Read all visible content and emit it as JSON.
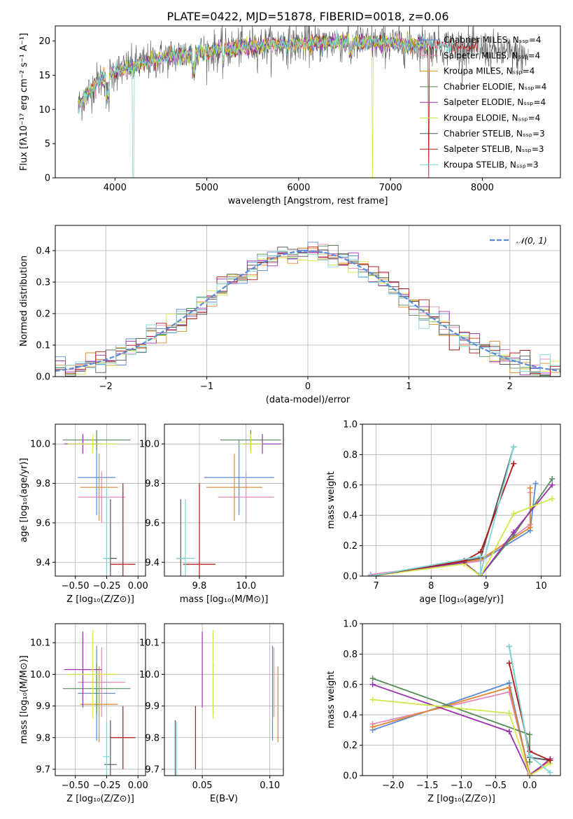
{
  "title": "PLATE=0422, MJD=51878, FIBERID=0018, z=0.06",
  "colors": {
    "chabrier_miles": "#5b8bd6",
    "salpeter_miles": "#e58ab8",
    "kroupa_miles": "#e0872e",
    "chabrier_elodie": "#558b55",
    "salpeter_elodie": "#9b2fb0",
    "kroupa_elodie": "#cfe84a",
    "chabrier_stelib": "#555555",
    "salpeter_stelib": "#b01818",
    "kroupa_stelib": "#7fd6d6",
    "normal": "#5b8bd6"
  },
  "chart_data": [
    {
      "id": "spectrum",
      "type": "line",
      "xlabel": "wavelength [Angstrom, rest frame]",
      "ylabel": "Flux [fλ10⁻¹⁷ erg cm⁻² s⁻¹ A⁻¹]",
      "xlim": [
        3350,
        8850
      ],
      "ylim": [
        0,
        22.2
      ],
      "xticks": [
        "4000",
        "5000",
        "6000",
        "7000",
        "8000"
      ],
      "yticks": [
        "0",
        "5",
        "10",
        "15",
        "20"
      ],
      "grid": false,
      "legend_position": "top-right",
      "continuum_x": [
        3600,
        3800,
        4000,
        4300,
        4600,
        5000,
        5500,
        6000,
        6500,
        7000,
        7500,
        8000,
        8500
      ],
      "continuum_y": [
        10.5,
        14,
        15.5,
        16.7,
        17.8,
        18.4,
        19.3,
        19.6,
        19.8,
        19.6,
        19.4,
        18.8,
        17.6
      ],
      "series": [
        {
          "name": "Chabrier MILES, Nₛₛₚ=4",
          "color_key": "chabrier_miles"
        },
        {
          "name": "Salpeter MILES, Nₛₛₚ=4",
          "color_key": "salpeter_miles"
        },
        {
          "name": "Kroupa MILES, Nₛₛₚ=4",
          "color_key": "kroupa_miles"
        },
        {
          "name": "Chabrier ELODIE, Nₛₛₚ=4",
          "color_key": "chabrier_elodie"
        },
        {
          "name": "Salpeter ELODIE, Nₛₛₚ=4",
          "color_key": "salpeter_elodie"
        },
        {
          "name": "Kroupa ELODIE, Nₛₛₚ=4",
          "color_key": "kroupa_elodie"
        },
        {
          "name": "Chabrier STELIB, Nₛₛₚ=3",
          "color_key": "chabrier_stelib"
        },
        {
          "name": "Salpeter STELIB, Nₛₛₚ=3",
          "color_key": "salpeter_stelib"
        },
        {
          "name": "Kroupa STELIB, Nₛₛₚ=3",
          "color_key": "kroupa_stelib"
        }
      ]
    },
    {
      "id": "residuals",
      "type": "step",
      "xlabel": "(data-model)/error",
      "ylabel": "Normed distribution",
      "xlim": [
        -2.5,
        2.5
      ],
      "ylim": [
        0,
        0.48
      ],
      "xticks": [
        -2,
        -1,
        0,
        1,
        2
      ],
      "xtick_labels": [
        "−2",
        "−1",
        "0",
        "1",
        "2"
      ],
      "yticks": [
        0.0,
        0.1,
        0.2,
        0.3,
        0.4
      ],
      "ytick_labels": [
        "0.0",
        "0.1",
        "0.2",
        "0.3",
        "0.4"
      ],
      "grid": true,
      "legend_position": "top-right",
      "reference_label": "𝒩(0, 1)",
      "reference_mean": 0,
      "reference_sigma": 1
    },
    {
      "id": "age_vs_Z",
      "type": "errorbar",
      "xlabel": "Z [log₁₀(Z/Z⊙)]",
      "ylabel": "age  [log₁₀(age/yr)]",
      "xlim": [
        -0.66,
        0.06
      ],
      "ylim": [
        9.33,
        10.1
      ],
      "xticks": [
        -0.5,
        -0.25,
        0.0
      ],
      "xtick_labels": [
        "−0.50",
        "−0.25",
        "0.00"
      ],
      "yticks": [
        9.4,
        9.6,
        9.8,
        10.0
      ],
      "ytick_labels": [
        "9.4",
        "9.6",
        "9.8",
        "10.0"
      ],
      "grid": true,
      "points": [
        {
          "key": "chabrier_miles",
          "x": -0.33,
          "xerr": 0.15,
          "y": 9.83,
          "yerr": 0.19
        },
        {
          "key": "salpeter_miles",
          "x": -0.29,
          "xerr": 0.19,
          "y": 9.73,
          "yerr": 0.13
        },
        {
          "key": "kroupa_miles",
          "x": -0.31,
          "xerr": 0.15,
          "y": 9.78,
          "yerr": 0.17
        },
        {
          "key": "chabrier_elodie",
          "x": -0.33,
          "xerr": 0.27,
          "y": 10.02,
          "yerr": 0.05
        },
        {
          "key": "salpeter_elodie",
          "x": -0.44,
          "xerr": 0.15,
          "y": 10.0,
          "yerr": 0.05
        },
        {
          "key": "kroupa_elodie",
          "x": -0.36,
          "xerr": 0.2,
          "y": 10.0,
          "yerr": 0.05
        },
        {
          "key": "chabrier_stelib",
          "x": -0.22,
          "xerr": 0.05,
          "y": 9.42,
          "yerr": 0.3
        },
        {
          "key": "salpeter_stelib",
          "x": -0.12,
          "xerr": 0.1,
          "y": 9.39,
          "yerr": 0.41
        },
        {
          "key": "kroupa_stelib",
          "x": -0.25,
          "xerr": 0.03,
          "y": 9.42,
          "yerr": 0.36
        }
      ]
    },
    {
      "id": "age_vs_mass",
      "type": "errorbar",
      "xlabel": "mass [log₁₀(M/M⊙)]",
      "ylabel": "",
      "xlim": [
        9.65,
        10.16
      ],
      "ylim": [
        9.33,
        10.1
      ],
      "xticks": [
        9.8,
        10.0
      ],
      "xtick_labels": [
        "9.8",
        "10.0"
      ],
      "yticks": [
        9.4,
        9.6,
        9.8,
        10.0
      ],
      "ytick_labels": [
        "9.4",
        "9.6",
        "9.8",
        "10.0"
      ],
      "grid": true,
      "points": [
        {
          "key": "chabrier_miles",
          "x": 9.97,
          "xerr": 0.15,
          "y": 9.83,
          "yerr": 0.19
        },
        {
          "key": "salpeter_miles",
          "x": 10.0,
          "xerr": 0.12,
          "y": 9.73,
          "yerr": 0.13
        },
        {
          "key": "kroupa_miles",
          "x": 9.95,
          "xerr": 0.12,
          "y": 9.78,
          "yerr": 0.17
        },
        {
          "key": "chabrier_elodie",
          "x": 10.02,
          "xerr": 0.13,
          "y": 10.02,
          "yerr": 0.05
        },
        {
          "key": "salpeter_elodie",
          "x": 10.07,
          "xerr": 0.08,
          "y": 10.0,
          "yerr": 0.05
        },
        {
          "key": "kroupa_elodie",
          "x": 10.02,
          "xerr": 0.05,
          "y": 10.0,
          "yerr": 0.05
        },
        {
          "key": "chabrier_stelib",
          "x": 9.72,
          "xerr": 0.02,
          "y": 9.42,
          "yerr": 0.3
        },
        {
          "key": "salpeter_stelib",
          "x": 9.8,
          "xerr": 0.07,
          "y": 9.39,
          "yerr": 0.41
        },
        {
          "key": "kroupa_stelib",
          "x": 9.74,
          "xerr": 0.04,
          "y": 9.42,
          "yerr": 0.3
        }
      ]
    },
    {
      "id": "weight_vs_age",
      "type": "line",
      "xlabel": "age  [log₁₀(age/yr)]",
      "ylabel": "mass weight",
      "xlim": [
        6.75,
        10.35
      ],
      "ylim": [
        0,
        1.0
      ],
      "xticks": [
        7,
        8,
        9,
        10
      ],
      "xtick_labels": [
        "7",
        "8",
        "9",
        "10"
      ],
      "yticks": [
        0.0,
        0.2,
        0.4,
        0.6,
        0.8,
        1.0
      ],
      "ytick_labels": [
        "0.0",
        "0.2",
        "0.4",
        "0.6",
        "0.8",
        "1.0"
      ],
      "grid": true,
      "series": [
        {
          "key": "chabrier_miles",
          "x": [
            6.9,
            8.9,
            9.8,
            9.9
          ],
          "y": [
            0.0,
            0.1,
            0.3,
            0.61
          ]
        },
        {
          "key": "salpeter_miles",
          "x": [
            6.9,
            8.9,
            9.8,
            9.8
          ],
          "y": [
            0.01,
            0.1,
            0.34,
            0.55
          ]
        },
        {
          "key": "kroupa_miles",
          "x": [
            6.9,
            8.9,
            9.8,
            9.8
          ],
          "y": [
            0.0,
            0.11,
            0.32,
            0.58
          ]
        },
        {
          "key": "chabrier_elodie",
          "x": [
            6.9,
            8.6,
            8.9,
            9.5,
            10.2
          ],
          "y": [
            0.0,
            0.09,
            0.0,
            0.27,
            0.64
          ]
        },
        {
          "key": "salpeter_elodie",
          "x": [
            6.9,
            8.6,
            8.9,
            9.5,
            10.2
          ],
          "y": [
            0.0,
            0.09,
            0.0,
            0.29,
            0.6
          ]
        },
        {
          "key": "kroupa_elodie",
          "x": [
            6.9,
            8.6,
            8.9,
            9.5,
            10.2
          ],
          "y": [
            0.0,
            0.08,
            0.0,
            0.41,
            0.51
          ]
        },
        {
          "key": "chabrier_stelib",
          "x": [
            6.9,
            8.6,
            8.9,
            9.5
          ],
          "y": [
            0.0,
            0.1,
            0.12,
            0.85
          ]
        },
        {
          "key": "salpeter_stelib",
          "x": [
            6.9,
            8.6,
            8.9,
            9.5
          ],
          "y": [
            0.0,
            0.1,
            0.16,
            0.74
          ]
        },
        {
          "key": "kroupa_stelib",
          "x": [
            6.9,
            8.9,
            8.9,
            9.5
          ],
          "y": [
            0.0,
            0.13,
            0.02,
            0.85
          ]
        }
      ]
    },
    {
      "id": "mass_vs_Z",
      "type": "errorbar",
      "xlabel": "Z [log₁₀(Z/Z⊙)]",
      "ylabel": "mass [log₁₀(M/M⊙)]",
      "xlim": [
        -0.66,
        0.06
      ],
      "ylim": [
        9.68,
        10.16
      ],
      "xticks": [
        -0.5,
        -0.25,
        0.0
      ],
      "xtick_labels": [
        "−0.50",
        "−0.25",
        "0.00"
      ],
      "yticks": [
        9.7,
        9.8,
        9.9,
        10.0,
        10.1
      ],
      "ytick_labels": [
        "9.7",
        "9.8",
        "9.9",
        "10.0",
        "10.1"
      ],
      "grid": true,
      "points": [
        {
          "key": "chabrier_miles",
          "x": -0.33,
          "xerr": 0.15,
          "y": 9.94,
          "yerr": 0.15
        },
        {
          "key": "salpeter_miles",
          "x": -0.29,
          "xerr": 0.19,
          "y": 9.975,
          "yerr": 0.11
        },
        {
          "key": "kroupa_miles",
          "x": -0.31,
          "xerr": 0.15,
          "y": 9.905,
          "yerr": 0.12
        },
        {
          "key": "chabrier_elodie",
          "x": -0.33,
          "xerr": 0.27,
          "y": 9.955,
          "yerr": 0.08
        },
        {
          "key": "salpeter_elodie",
          "x": -0.44,
          "xerr": 0.15,
          "y": 10.015,
          "yerr": 0.12
        },
        {
          "key": "kroupa_elodie",
          "x": -0.36,
          "xerr": 0.2,
          "y": 10.0,
          "yerr": 0.14
        },
        {
          "key": "chabrier_stelib",
          "x": -0.22,
          "xerr": 0.05,
          "y": 9.715,
          "yerr": 0.14
        },
        {
          "key": "salpeter_stelib",
          "x": -0.12,
          "xerr": 0.1,
          "y": 9.8,
          "yerr": 0.1
        },
        {
          "key": "kroupa_stelib",
          "x": -0.25,
          "xerr": 0.03,
          "y": 9.74,
          "yerr": 0.11
        }
      ]
    },
    {
      "id": "mass_vs_ebv",
      "type": "errorbar",
      "xlabel": "E(B-V)",
      "ylabel": "",
      "xlim": [
        0.022,
        0.11
      ],
      "ylim": [
        9.68,
        10.16
      ],
      "xticks": [
        0.05,
        0.1
      ],
      "xtick_labels": [
        "0.05",
        "0.10"
      ],
      "yticks": [
        9.7,
        9.8,
        9.9,
        10.0,
        10.1
      ],
      "ytick_labels": [
        "9.7",
        "9.8",
        "9.9",
        "10.0",
        "10.1"
      ],
      "grid": true,
      "points": [
        {
          "key": "chabrier_miles",
          "x": 0.102,
          "xerr": 0,
          "y": 9.94,
          "yerr": 0.15
        },
        {
          "key": "salpeter_miles",
          "x": 0.103,
          "xerr": 0,
          "y": 9.975,
          "yerr": 0.11
        },
        {
          "key": "kroupa_miles",
          "x": 0.106,
          "xerr": 0,
          "y": 9.905,
          "yerr": 0.12
        },
        {
          "key": "chabrier_elodie",
          "x": 0.058,
          "xerr": 0,
          "y": 9.955,
          "yerr": 0.08
        },
        {
          "key": "salpeter_elodie",
          "x": 0.05,
          "xerr": 0,
          "y": 10.015,
          "yerr": 0.12
        },
        {
          "key": "kroupa_elodie",
          "x": 0.058,
          "xerr": 0,
          "y": 10.0,
          "yerr": 0.14
        },
        {
          "key": "chabrier_stelib",
          "x": 0.03,
          "xerr": 0,
          "y": 9.715,
          "yerr": 0.14
        },
        {
          "key": "salpeter_stelib",
          "x": 0.045,
          "xerr": 0,
          "y": 9.8,
          "yerr": 0.1
        },
        {
          "key": "kroupa_stelib",
          "x": 0.031,
          "xerr": 0,
          "y": 9.74,
          "yerr": 0.11
        }
      ]
    },
    {
      "id": "weight_vs_Z",
      "type": "line",
      "xlabel": "Z [log₁₀(Z/Z⊙)]",
      "ylabel": "mass weight",
      "xlim": [
        -2.45,
        0.45
      ],
      "ylim": [
        0,
        1.0
      ],
      "xticks": [
        -2.0,
        -1.5,
        -1.0,
        -0.5,
        0.0
      ],
      "xtick_labels": [
        "−2.0",
        "−1.5",
        "−1.0",
        "−0.5",
        "0.0"
      ],
      "yticks": [
        0.0,
        0.2,
        0.4,
        0.6,
        0.8,
        1.0
      ],
      "ytick_labels": [
        "0.0",
        "0.2",
        "0.4",
        "0.6",
        "0.8",
        "1.0"
      ],
      "grid": true,
      "series": [
        {
          "key": "chabrier_miles",
          "x": [
            -2.3,
            -0.3,
            0.0,
            0.3
          ],
          "y": [
            0.3,
            0.61,
            0.0,
            0.1
          ]
        },
        {
          "key": "salpeter_miles",
          "x": [
            -2.3,
            -0.3,
            0.0,
            0.3
          ],
          "y": [
            0.34,
            0.55,
            0.01,
            0.1
          ]
        },
        {
          "key": "kroupa_miles",
          "x": [
            -2.3,
            -0.3,
            0.0,
            0.3
          ],
          "y": [
            0.32,
            0.58,
            0.0,
            0.1
          ]
        },
        {
          "key": "chabrier_elodie",
          "x": [
            -2.3,
            0.0,
            0.0
          ],
          "y": [
            0.64,
            0.27,
            0.09
          ]
        },
        {
          "key": "salpeter_elodie",
          "x": [
            -2.3,
            -0.3,
            0.0,
            0.3
          ],
          "y": [
            0.6,
            0.29,
            0.0,
            0.11
          ]
        },
        {
          "key": "kroupa_elodie",
          "x": [
            -2.3,
            -0.3,
            0.0,
            0.3
          ],
          "y": [
            0.5,
            0.41,
            0.0,
            0.08
          ]
        },
        {
          "key": "chabrier_stelib",
          "x": [
            -0.3,
            0.0,
            0.3
          ],
          "y": [
            0.85,
            0.12,
            0.1
          ]
        },
        {
          "key": "salpeter_stelib",
          "x": [
            -0.3,
            0.0,
            0.3
          ],
          "y": [
            0.74,
            0.16,
            0.1
          ]
        },
        {
          "key": "kroupa_stelib",
          "x": [
            -0.3,
            0.0,
            0.3
          ],
          "y": [
            0.85,
            0.13,
            0.02
          ]
        }
      ]
    }
  ]
}
